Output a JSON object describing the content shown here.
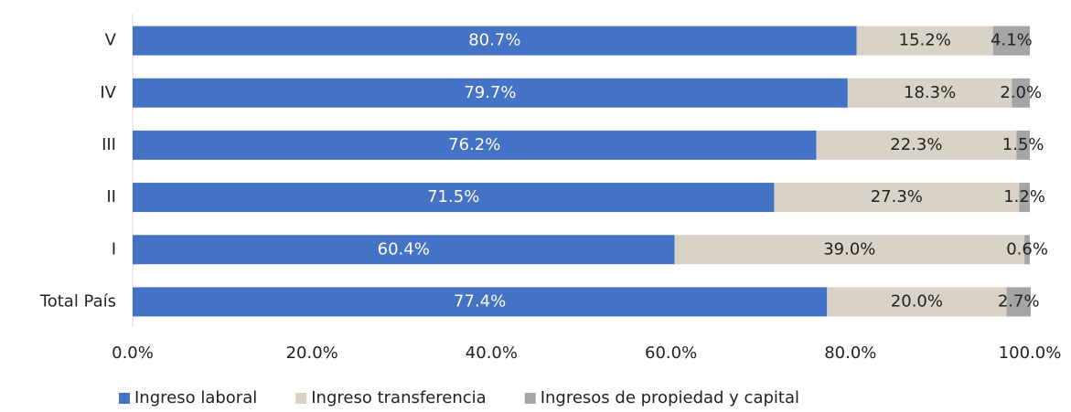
{
  "chart_data": {
    "type": "stacked_barh",
    "categories": [
      "V",
      "IV",
      "III",
      "II",
      "I",
      "Total País"
    ],
    "series": [
      {
        "name": "Ingreso laboral",
        "color": "#4472c4",
        "label_color": "#ffffff",
        "values": [
          80.7,
          79.7,
          76.2,
          71.5,
          60.4,
          77.4
        ],
        "value_labels": [
          "80.7%",
          "79.7%",
          "76.2%",
          "71.5%",
          "60.4%",
          "77.4%"
        ]
      },
      {
        "name": "Ingreso transferencia",
        "color": "#d9d3c7",
        "label_color": "#222222",
        "values": [
          15.2,
          18.3,
          22.3,
          27.3,
          39.0,
          20.0
        ],
        "value_labels": [
          "15.2%",
          "18.3%",
          "22.3%",
          "27.3%",
          "39.0%",
          "20.0%"
        ]
      },
      {
        "name": "Ingresos de propiedad y capital",
        "color": "#a5a5a5",
        "label_color": "#222222",
        "values": [
          4.1,
          2.0,
          1.5,
          1.2,
          0.6,
          2.7
        ],
        "value_labels": [
          "4.1%",
          "2.0%",
          "1.5%",
          "1.2%",
          "0.6%",
          "2.7%"
        ]
      }
    ],
    "xlim": [
      0,
      100
    ],
    "xticks": [
      {
        "value": 0,
        "label": "0.0%"
      },
      {
        "value": 20,
        "label": "20.0%"
      },
      {
        "value": 40,
        "label": "40.0%"
      },
      {
        "value": 60,
        "label": "60.0%"
      },
      {
        "value": 80,
        "label": "80.0%"
      },
      {
        "value": 100,
        "label": "100.0%"
      }
    ],
    "legend": "bottom",
    "grid": false
  }
}
